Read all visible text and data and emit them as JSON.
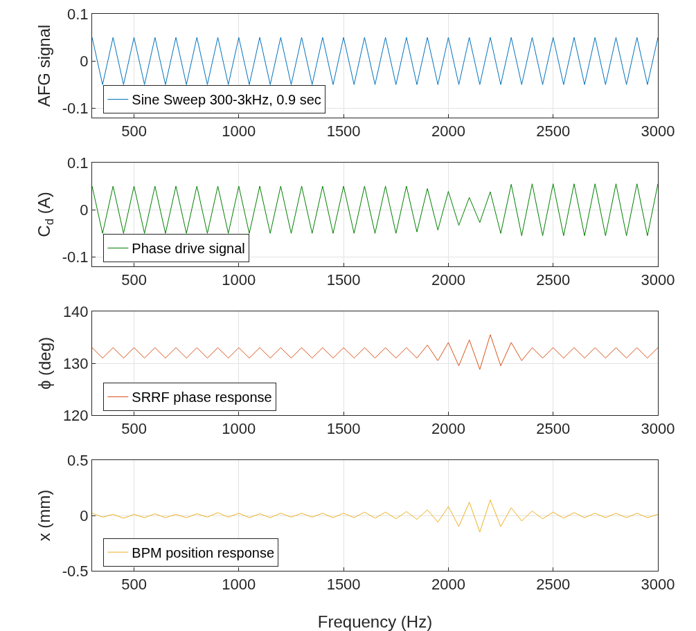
{
  "chart_data": [
    {
      "type": "line",
      "ylabel": "AFG signal",
      "xlim": [
        300,
        3000
      ],
      "xticks": [
        500,
        1000,
        1500,
        2000,
        2500,
        3000
      ],
      "ylim": [
        -0.12,
        0.1
      ],
      "yticks": [
        -0.1,
        0,
        0.1
      ],
      "grid": true,
      "legend": "bottom left",
      "x": [
        300,
        350,
        400,
        450,
        500,
        550,
        600,
        650,
        700,
        750,
        800,
        850,
        900,
        950,
        1000,
        1050,
        1100,
        1150,
        1200,
        1250,
        1300,
        1350,
        1400,
        1450,
        1500,
        1550,
        1600,
        1650,
        1700,
        1750,
        1800,
        1850,
        1900,
        1950,
        2000,
        2050,
        2100,
        2150,
        2200,
        2250,
        2300,
        2350,
        2400,
        2450,
        2500,
        2550,
        2600,
        2650,
        2700,
        2750,
        2800,
        2850,
        2900,
        2950,
        3000
      ],
      "series": [
        {
          "name": "Sine Sweep 300-3kHz, 0.9 sec",
          "color": "#0072bd",
          "values": [
            0.05,
            -0.05,
            0.05,
            -0.05,
            0.05,
            -0.05,
            0.05,
            -0.05,
            0.05,
            -0.05,
            0.05,
            -0.05,
            0.05,
            -0.05,
            0.05,
            -0.05,
            0.05,
            -0.05,
            0.05,
            -0.05,
            0.05,
            -0.05,
            0.05,
            -0.05,
            0.05,
            -0.05,
            0.05,
            -0.05,
            0.05,
            -0.05,
            0.05,
            -0.05,
            0.05,
            -0.05,
            0.05,
            -0.05,
            0.05,
            -0.05,
            0.05,
            -0.05,
            0.05,
            -0.05,
            0.05,
            -0.05,
            0.05,
            -0.05,
            0.05,
            -0.05,
            0.05,
            -0.05,
            0.05,
            -0.05,
            0.05,
            -0.05,
            0.05
          ]
        }
      ]
    },
    {
      "type": "line",
      "ylabel": "C$_{d}$ (A)",
      "xlim": [
        300,
        3000
      ],
      "xticks": [
        500,
        1000,
        1500,
        2000,
        2500,
        3000
      ],
      "ylim": [
        -0.12,
        0.1
      ],
      "yticks": [
        -0.1,
        0,
        0.1
      ],
      "grid": true,
      "legend": "bottom left",
      "x": [
        300,
        350,
        400,
        450,
        500,
        550,
        600,
        650,
        700,
        750,
        800,
        850,
        900,
        950,
        1000,
        1050,
        1100,
        1150,
        1200,
        1250,
        1300,
        1350,
        1400,
        1450,
        1500,
        1550,
        1600,
        1650,
        1700,
        1750,
        1800,
        1850,
        1900,
        1950,
        2000,
        2050,
        2100,
        2150,
        2200,
        2250,
        2300,
        2350,
        2400,
        2450,
        2500,
        2550,
        2600,
        2650,
        2700,
        2750,
        2800,
        2850,
        2900,
        2950,
        3000
      ],
      "series": [
        {
          "name": "Phase drive signal",
          "color": "#008000",
          "values": [
            0.05,
            -0.05,
            0.05,
            -0.05,
            0.05,
            -0.05,
            0.05,
            -0.05,
            0.05,
            -0.05,
            0.05,
            -0.05,
            0.05,
            -0.05,
            0.05,
            -0.05,
            0.05,
            -0.05,
            0.05,
            -0.05,
            0.05,
            -0.05,
            0.05,
            -0.05,
            0.05,
            -0.05,
            0.05,
            -0.05,
            0.05,
            -0.05,
            0.05,
            -0.047,
            0.045,
            -0.043,
            0.039,
            -0.033,
            0.026,
            -0.027,
            0.038,
            -0.05,
            0.054,
            -0.055,
            0.055,
            -0.055,
            0.055,
            -0.055,
            0.055,
            -0.055,
            0.055,
            -0.055,
            0.055,
            -0.055,
            0.055,
            -0.055,
            0.055
          ]
        }
      ]
    },
    {
      "type": "line",
      "ylabel": "ϕ (deg)",
      "xlim": [
        300,
        3000
      ],
      "xticks": [
        500,
        1000,
        1500,
        2000,
        2500,
        3000
      ],
      "ylim": [
        120,
        140
      ],
      "yticks": [
        120,
        130,
        140
      ],
      "grid": true,
      "legend": "bottom left",
      "x": [
        300,
        350,
        400,
        450,
        500,
        550,
        600,
        650,
        700,
        750,
        800,
        850,
        900,
        950,
        1000,
        1050,
        1100,
        1150,
        1200,
        1250,
        1300,
        1350,
        1400,
        1450,
        1500,
        1550,
        1600,
        1650,
        1700,
        1750,
        1800,
        1850,
        1900,
        1950,
        2000,
        2050,
        2100,
        2150,
        2200,
        2250,
        2300,
        2350,
        2400,
        2450,
        2500,
        2550,
        2600,
        2650,
        2700,
        2750,
        2800,
        2850,
        2900,
        2950,
        3000
      ],
      "series": [
        {
          "name": "SRRF phase response",
          "color": "#d95319",
          "values": [
            133,
            131,
            133,
            131,
            133,
            131,
            133,
            131,
            133,
            131,
            133,
            131,
            133,
            131,
            133,
            131,
            133,
            131,
            133,
            131,
            133,
            131,
            133,
            131,
            133,
            131,
            133,
            131,
            133,
            131,
            133,
            131,
            133.5,
            130.5,
            134,
            129.5,
            134.5,
            128.8,
            135.5,
            129.5,
            134,
            130.5,
            133,
            131,
            133,
            131,
            133,
            131,
            133,
            131,
            133,
            131,
            133,
            131,
            133
          ]
        }
      ]
    },
    {
      "type": "line",
      "ylabel": "x (mm)",
      "xlabel": "Frequency (Hz)",
      "xlim": [
        300,
        3000
      ],
      "xticks": [
        500,
        1000,
        1500,
        2000,
        2500,
        3000
      ],
      "ylim": [
        -0.5,
        0.5
      ],
      "yticks": [
        -0.5,
        0,
        0.5
      ],
      "grid": true,
      "legend": "bottom left",
      "x": [
        300,
        350,
        400,
        450,
        500,
        550,
        600,
        650,
        700,
        750,
        800,
        850,
        900,
        950,
        1000,
        1050,
        1100,
        1150,
        1200,
        1250,
        1300,
        1350,
        1400,
        1450,
        1500,
        1550,
        1600,
        1650,
        1700,
        1750,
        1800,
        1850,
        1900,
        1950,
        2000,
        2050,
        2100,
        2150,
        2200,
        2250,
        2300,
        2350,
        2400,
        2450,
        2500,
        2550,
        2600,
        2650,
        2700,
        2750,
        2800,
        2850,
        2900,
        2950,
        3000
      ],
      "series": [
        {
          "name": "BPM position response",
          "color": "#edb120",
          "values": [
            0.02,
            -0.015,
            0.01,
            -0.025,
            0.01,
            -0.02,
            0.015,
            -0.02,
            0.01,
            -0.02,
            0.015,
            -0.015,
            0.025,
            -0.015,
            0.02,
            -0.02,
            0.015,
            -0.02,
            0.02,
            -0.015,
            0.02,
            -0.015,
            0.02,
            -0.02,
            0.02,
            -0.02,
            0.03,
            -0.025,
            0.03,
            -0.03,
            0.035,
            -0.035,
            0.05,
            -0.06,
            0.08,
            -0.1,
            0.12,
            -0.15,
            0.14,
            -0.1,
            0.07,
            -0.05,
            0.04,
            -0.03,
            0.03,
            -0.025,
            0.025,
            -0.02,
            0.02,
            -0.02,
            0.02,
            -0.02,
            0.02,
            -0.02,
            0.01
          ]
        }
      ]
    }
  ]
}
